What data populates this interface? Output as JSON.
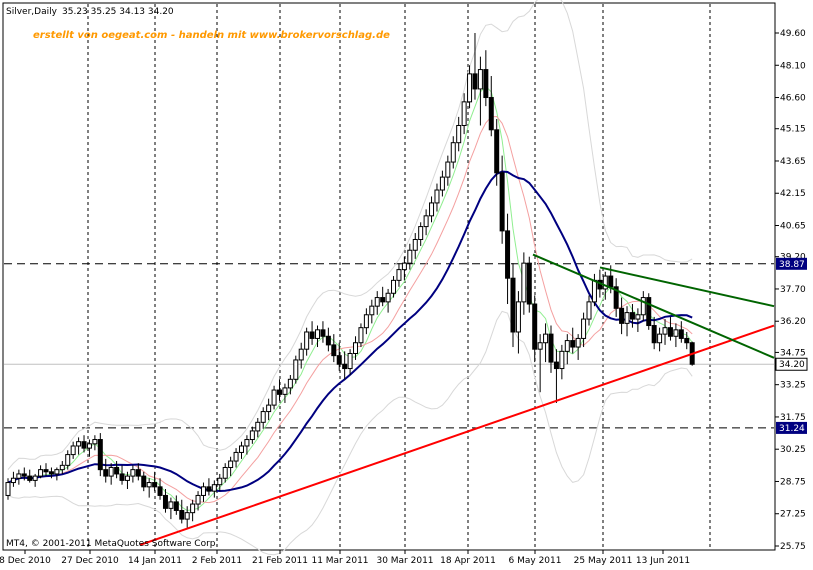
{
  "header": {
    "symbol": "Silver,Daily",
    "ohlc": "35.23 35.25 34.13 34.20",
    "watermark": "erstellt von oegeat.com - handeln mit www.brokervorschlag.de"
  },
  "footer": {
    "copyright": "MT4, © 2001-2011 MetaQuotes Software Corp."
  },
  "colors": {
    "candle": "#000000",
    "ma_fast": "#90ee90",
    "ma_mid": "#f4a0a0",
    "ma_slow": "#000080",
    "bands": "#d8d8d8",
    "support": "#ff0000",
    "resistance": "#006400",
    "price_box": "#000080"
  },
  "chart_data": {
    "type": "candlestick",
    "title": "Silver,Daily",
    "ylim": [
      25.75,
      49.6
    ],
    "y_ticks": [
      "49.60",
      "48.10",
      "46.60",
      "45.15",
      "43.65",
      "42.15",
      "40.65",
      "39.20",
      "37.70",
      "36.20",
      "34.75",
      "33.25",
      "31.75",
      "30.25",
      "28.75",
      "27.25",
      "25.75"
    ],
    "x_ticks": [
      "8 Dec 2010",
      "27 Dec 2010",
      "14 Jan 2011",
      "2 Feb 2011",
      "21 Feb 2011",
      "11 Mar 2011",
      "30 Mar 2011",
      "18 Apr 2011",
      "6 May 2011",
      "25 May 2011",
      "13 Jun 2011"
    ],
    "grid": "vertical dashed",
    "horizontal_levels": [
      {
        "label": "38.87",
        "value": 38.87
      },
      {
        "label": "31.24",
        "value": 31.24
      }
    ],
    "current_price": {
      "label": "34.20",
      "value": 34.2
    },
    "trendlines": [
      {
        "name": "support",
        "from": [
          "14 Jan 2011",
          25.8
        ],
        "to": [
          "end",
          36.0
        ]
      },
      {
        "name": "resistance",
        "from": [
          "6 May 2011",
          39.3
        ],
        "to": [
          "end",
          34.5
        ]
      },
      {
        "name": "resistance",
        "from": [
          "25 May 2011",
          38.7
        ],
        "to": [
          "end",
          36.9
        ]
      }
    ],
    "candles": [
      [
        28.1,
        28.9,
        27.9,
        28.7
      ],
      [
        28.7,
        29.2,
        28.5,
        28.9
      ],
      [
        28.9,
        29.3,
        28.6,
        29.1
      ],
      [
        29.1,
        29.4,
        28.8,
        29.0
      ],
      [
        29.0,
        29.3,
        28.7,
        28.8
      ],
      [
        28.8,
        29.1,
        28.5,
        29.0
      ],
      [
        29.0,
        29.5,
        28.9,
        29.3
      ],
      [
        29.3,
        29.6,
        29.0,
        29.2
      ],
      [
        29.2,
        29.4,
        28.9,
        29.1
      ],
      [
        29.1,
        29.4,
        28.8,
        29.3
      ],
      [
        29.3,
        29.7,
        29.1,
        29.5
      ],
      [
        29.5,
        30.2,
        29.3,
        30.0
      ],
      [
        30.0,
        30.6,
        29.8,
        30.4
      ],
      [
        30.4,
        30.8,
        30.0,
        30.6
      ],
      [
        30.6,
        30.9,
        30.1,
        30.3
      ],
      [
        30.3,
        30.7,
        29.9,
        30.5
      ],
      [
        30.5,
        30.9,
        30.2,
        30.7
      ],
      [
        30.7,
        31.0,
        29.0,
        29.3
      ],
      [
        29.3,
        29.8,
        28.7,
        29.0
      ],
      [
        29.0,
        29.6,
        28.6,
        29.4
      ],
      [
        29.4,
        29.7,
        28.9,
        29.1
      ],
      [
        29.1,
        29.5,
        28.6,
        28.8
      ],
      [
        28.8,
        29.2,
        28.4,
        29.0
      ],
      [
        29.0,
        29.5,
        28.7,
        29.3
      ],
      [
        29.3,
        29.6,
        28.8,
        29.0
      ],
      [
        29.0,
        29.2,
        28.3,
        28.5
      ],
      [
        28.5,
        28.9,
        28.0,
        28.7
      ],
      [
        28.7,
        29.2,
        28.3,
        28.5
      ],
      [
        28.5,
        28.9,
        27.9,
        28.1
      ],
      [
        28.1,
        28.4,
        27.3,
        27.5
      ],
      [
        27.5,
        28.0,
        27.0,
        27.8
      ],
      [
        27.8,
        28.1,
        27.2,
        27.4
      ],
      [
        27.4,
        27.9,
        26.8,
        27.0
      ],
      [
        27.0,
        27.6,
        26.6,
        27.3
      ],
      [
        27.3,
        27.9,
        26.9,
        27.7
      ],
      [
        27.7,
        28.3,
        27.4,
        28.1
      ],
      [
        28.1,
        28.7,
        27.8,
        28.5
      ],
      [
        28.5,
        28.9,
        28.1,
        28.3
      ],
      [
        28.3,
        28.8,
        28.0,
        28.6
      ],
      [
        28.6,
        29.1,
        28.3,
        28.9
      ],
      [
        28.9,
        29.6,
        28.7,
        29.4
      ],
      [
        29.4,
        29.9,
        29.0,
        29.7
      ],
      [
        29.7,
        30.3,
        29.4,
        30.1
      ],
      [
        30.1,
        30.6,
        29.8,
        30.4
      ],
      [
        30.4,
        30.9,
        30.0,
        30.7
      ],
      [
        30.7,
        31.3,
        30.5,
        31.1
      ],
      [
        31.1,
        31.7,
        30.8,
        31.5
      ],
      [
        31.5,
        32.2,
        31.2,
        32.0
      ],
      [
        32.0,
        32.6,
        31.6,
        32.3
      ],
      [
        32.3,
        33.2,
        32.1,
        33.0
      ],
      [
        33.0,
        33.5,
        32.5,
        32.8
      ],
      [
        32.8,
        33.3,
        32.4,
        33.1
      ],
      [
        33.1,
        33.7,
        32.8,
        33.5
      ],
      [
        33.5,
        34.6,
        33.3,
        34.4
      ],
      [
        34.4,
        35.2,
        34.0,
        34.9
      ],
      [
        34.9,
        35.9,
        34.6,
        35.7
      ],
      [
        35.7,
        36.2,
        35.1,
        35.4
      ],
      [
        35.4,
        36.0,
        35.0,
        35.8
      ],
      [
        35.8,
        36.2,
        35.2,
        35.5
      ],
      [
        35.5,
        35.9,
        34.8,
        35.1
      ],
      [
        35.1,
        35.6,
        34.3,
        34.6
      ],
      [
        34.6,
        35.2,
        33.9,
        34.2
      ],
      [
        34.2,
        34.8,
        33.5,
        34.0
      ],
      [
        34.0,
        34.9,
        33.7,
        34.7
      ],
      [
        34.7,
        35.5,
        34.4,
        35.2
      ],
      [
        35.2,
        36.1,
        35.0,
        35.9
      ],
      [
        35.9,
        36.8,
        35.6,
        36.5
      ],
      [
        36.5,
        37.2,
        36.1,
        36.9
      ],
      [
        36.9,
        37.6,
        36.5,
        37.3
      ],
      [
        37.3,
        37.8,
        36.9,
        37.1
      ],
      [
        37.1,
        37.7,
        36.6,
        37.5
      ],
      [
        37.5,
        38.3,
        37.3,
        38.1
      ],
      [
        38.1,
        38.9,
        37.8,
        38.6
      ],
      [
        38.6,
        39.2,
        38.1,
        38.9
      ],
      [
        38.9,
        39.8,
        38.6,
        39.5
      ],
      [
        39.5,
        40.3,
        39.1,
        40.0
      ],
      [
        40.0,
        40.8,
        39.7,
        40.6
      ],
      [
        40.6,
        41.4,
        40.2,
        41.1
      ],
      [
        41.1,
        42.0,
        40.8,
        41.7
      ],
      [
        41.7,
        42.6,
        41.3,
        42.3
      ],
      [
        42.3,
        43.2,
        42.0,
        42.9
      ],
      [
        42.9,
        43.9,
        42.5,
        43.6
      ],
      [
        43.6,
        44.8,
        43.3,
        44.5
      ],
      [
        44.5,
        45.7,
        44.1,
        45.3
      ],
      [
        45.3,
        46.8,
        44.9,
        46.4
      ],
      [
        46.4,
        48.1,
        46.1,
        47.7
      ],
      [
        47.7,
        49.6,
        46.5,
        47.0
      ],
      [
        47.0,
        48.5,
        45.3,
        47.9
      ],
      [
        47.9,
        48.8,
        46.2,
        46.6
      ],
      [
        46.6,
        47.6,
        44.8,
        45.1
      ],
      [
        45.1,
        45.6,
        42.5,
        43.1
      ],
      [
        43.1,
        43.9,
        39.8,
        40.4
      ],
      [
        40.4,
        41.2,
        37.0,
        38.2
      ],
      [
        38.2,
        38.9,
        35.0,
        35.7
      ],
      [
        35.7,
        37.6,
        34.7,
        37.1
      ],
      [
        37.1,
        39.4,
        36.5,
        38.9
      ],
      [
        38.9,
        39.2,
        36.6,
        37.0
      ],
      [
        37.0,
        37.4,
        34.3,
        34.9
      ],
      [
        34.9,
        35.6,
        32.9,
        35.2
      ],
      [
        35.2,
        36.1,
        34.3,
        35.6
      ],
      [
        35.6,
        36.0,
        33.8,
        34.3
      ],
      [
        34.3,
        34.9,
        32.4,
        34.0
      ],
      [
        34.0,
        35.1,
        33.5,
        34.8
      ],
      [
        34.8,
        35.6,
        34.2,
        35.3
      ],
      [
        35.3,
        35.9,
        34.7,
        35.0
      ],
      [
        35.0,
        35.6,
        34.4,
        35.4
      ],
      [
        35.4,
        36.6,
        35.0,
        36.3
      ],
      [
        36.3,
        37.4,
        36.0,
        37.1
      ],
      [
        37.1,
        38.4,
        36.9,
        38.1
      ],
      [
        38.1,
        38.6,
        37.3,
        37.7
      ],
      [
        37.7,
        38.5,
        37.2,
        38.3
      ],
      [
        38.3,
        38.8,
        37.5,
        37.8
      ],
      [
        37.8,
        38.2,
        36.4,
        36.8
      ],
      [
        36.8,
        37.3,
        35.6,
        36.1
      ],
      [
        36.1,
        36.9,
        35.5,
        36.6
      ],
      [
        36.6,
        37.0,
        35.9,
        36.3
      ],
      [
        36.3,
        36.8,
        35.7,
        36.5
      ],
      [
        36.5,
        37.6,
        36.2,
        37.3
      ],
      [
        37.3,
        37.5,
        35.8,
        36.0
      ],
      [
        36.0,
        36.4,
        34.9,
        35.2
      ],
      [
        35.2,
        35.9,
        34.8,
        35.6
      ],
      [
        35.6,
        36.3,
        35.1,
        35.9
      ],
      [
        35.9,
        36.4,
        35.3,
        35.5
      ],
      [
        35.5,
        36.1,
        35.0,
        35.8
      ],
      [
        35.8,
        36.2,
        35.2,
        35.4
      ],
      [
        35.4,
        35.7,
        34.9,
        35.2
      ],
      [
        35.2,
        35.25,
        34.13,
        34.2
      ]
    ]
  }
}
